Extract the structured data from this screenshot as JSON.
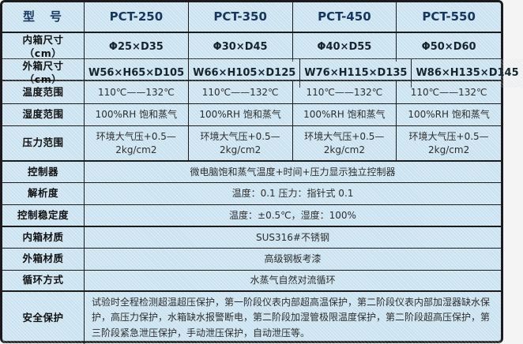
{
  "colors": {
    "cell_bg": "#cfe7f4",
    "border": "#1b1b1b",
    "header_text": "#17365d",
    "label_text": "#101010",
    "value_text": "#2d2d2d"
  },
  "table": {
    "header": {
      "label": "型　号",
      "models": [
        "PCT-250",
        "PCT-350",
        "PCT-450",
        "PCT-550"
      ]
    },
    "rows": [
      {
        "label": "内箱尺寸（cm）",
        "values": [
          "Φ25×D35",
          "Φ30×D45",
          "Φ40×D55",
          "Φ50×D60"
        ],
        "emphasis": true
      },
      {
        "label": "外箱尺寸（cm）",
        "values": [
          "W56×H65×D105",
          "W66×H105×D125",
          "W76×H115×D135",
          "W86×H135×D145"
        ],
        "emphasis": true
      },
      {
        "label": "温度范围",
        "values": [
          "110℃——132℃",
          "110℃——132℃",
          "110℃——132℃",
          "110℃——132℃"
        ]
      },
      {
        "label": "湿度范围",
        "values": [
          "100%RH 饱和蒸气",
          "100%RH 饱和蒸气",
          "100%RH 饱和蒸气",
          "100%RH 饱和蒸气"
        ]
      },
      {
        "label": "压力范围",
        "values": [
          "环境大气压+0.5—2kg/cm2",
          "环境大气压+0.5—2kg/cm2",
          "环境大气压+0.5—2kg/cm2",
          "环境大气压+0.5—2kg/cm2"
        ]
      },
      {
        "label": "控制器",
        "merged": "微电脑饱和蒸气温度+时间+压力显示独立控制器"
      },
      {
        "label": "解析度",
        "merged": "温度：0.1 压力：指针式 0.1"
      },
      {
        "label": "控制稳定度",
        "merged": "温度：±0.5℃，湿度：100%"
      },
      {
        "label": "内箱材质",
        "merged": "SUS316#不锈钢"
      },
      {
        "label": "外箱材质",
        "merged": "高级钢板考漆"
      },
      {
        "label": "循环方式",
        "merged": "水蒸气自然对流循环"
      },
      {
        "label": "安全保护",
        "merged": "试验时全程检测超温超压保护，第一阶段仪表内部超高温保护，第二阶段仪表内部加湿器缺水保护，高压力保护，水箱缺水报警断电，第二阶段加湿管极限温度保护，第二阶段超高压保护，第三阶段紧急泄压保护，手动泄压保护，自动泄压等。",
        "align_left": true
      }
    ]
  }
}
